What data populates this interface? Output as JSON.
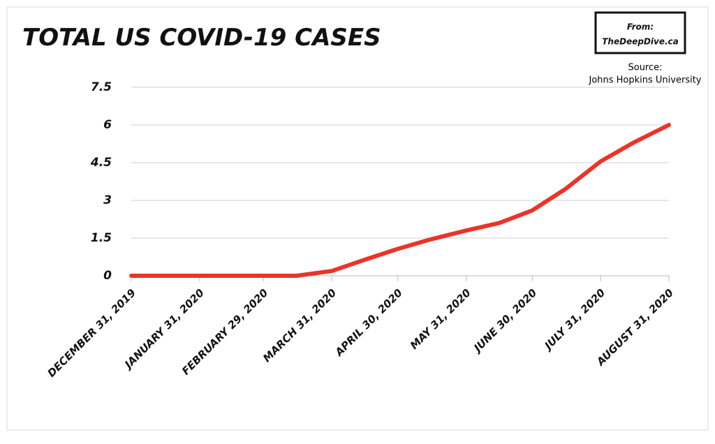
{
  "chart_data": {
    "type": "line",
    "title": "Total US COVID-19 Cases",
    "annotations": [
      "From:",
      "TheDeepDive.ca",
      "Source:",
      "Johns Hopkins University"
    ],
    "x": [
      "2019-12-31",
      "2020-01-31",
      "2020-02-29",
      "2020-03-15",
      "2020-03-31",
      "2020-04-15",
      "2020-04-30",
      "2020-05-15",
      "2020-05-31",
      "2020-06-15",
      "2020-06-30",
      "2020-07-15",
      "2020-07-31",
      "2020-08-15",
      "2020-08-31"
    ],
    "series": [
      {
        "name": "Total US COVID-19 Cases",
        "color": "#e8352b",
        "values": [
          0,
          0,
          0,
          0,
          0.19,
          0.64,
          1.07,
          1.45,
          1.8,
          2.1,
          2.6,
          3.45,
          4.55,
          5.3,
          6.0
        ]
      }
    ],
    "xlim": [
      "2019-12-31",
      "2020-08-31"
    ],
    "xticks": [
      {
        "value": "2019-12-31",
        "label": "December 31, 2019"
      },
      {
        "value": "2020-01-31",
        "label": "January 31, 2020"
      },
      {
        "value": "2020-02-29",
        "label": "February 29, 2020"
      },
      {
        "value": "2020-03-31",
        "label": "March 31, 2020"
      },
      {
        "value": "2020-04-30",
        "label": "April 30, 2020"
      },
      {
        "value": "2020-05-31",
        "label": "May 31, 2020"
      },
      {
        "value": "2020-06-30",
        "label": "June 30, 2020"
      },
      {
        "value": "2020-07-31",
        "label": "July 31, 2020"
      },
      {
        "value": "2020-08-31",
        "label": "August 31, 2020"
      }
    ],
    "ylim": [
      0,
      7.5
    ],
    "yticks": [
      0,
      1.5,
      3,
      4.5,
      6,
      7.5
    ],
    "grid": true
  }
}
